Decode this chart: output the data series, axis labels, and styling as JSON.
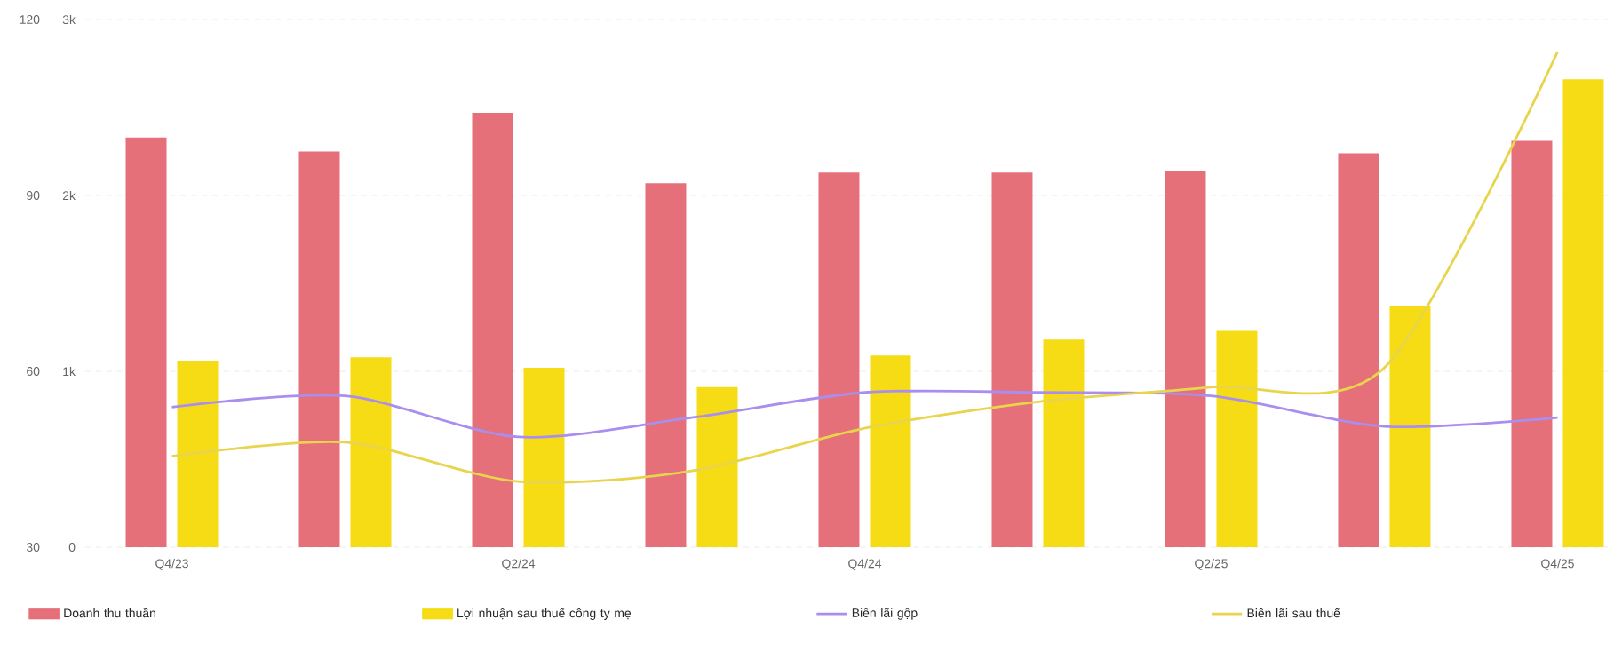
{
  "chart_data": {
    "type": "bar",
    "categories": [
      "Q4/23",
      null,
      "Q2/24",
      null,
      "Q4/24",
      null,
      "Q2/25",
      null,
      "Q4/25"
    ],
    "series": [
      {
        "name": "Doanh thu thuần",
        "axis": "y2",
        "color": "#e5707a",
        "values": [
          2330,
          2250,
          2470,
          2070,
          2130,
          2130,
          2140,
          2240,
          2310
        ]
      },
      {
        "name": "Lợi nhuận sau thuế công ty mẹ",
        "axis": "y2",
        "color": "#f5dc14",
        "values": [
          1060,
          1080,
          1020,
          910,
          1090,
          1180,
          1230,
          1370,
          2660
        ]
      },
      {
        "name": "Biên lãi gộp",
        "type": "line",
        "axis": "y",
        "color": "#a98ef0",
        "values": [
          53.9,
          55.8,
          48.8,
          52.1,
          56.4,
          56.4,
          55.8,
          50.6,
          52.1
        ]
      },
      {
        "name": "Biên lãi sau thuế",
        "type": "line",
        "axis": "y",
        "color": "#e8d44d",
        "values": [
          45.5,
          47.9,
          41.2,
          43.0,
          50.3,
          54.8,
          57.3,
          60.6,
          114.5
        ]
      }
    ],
    "ylim": [
      30,
      120
    ],
    "yticks": [
      30,
      60,
      90,
      120
    ],
    "y2lim": [
      0,
      3000
    ],
    "y2ticks": [
      0,
      {
        "value": 1000,
        "label": "1k"
      },
      {
        "value": 2000,
        "label": "2k"
      },
      {
        "value": 3000,
        "label": "3k"
      }
    ],
    "grid": "y",
    "legend": "bottom",
    "marker": "none"
  }
}
